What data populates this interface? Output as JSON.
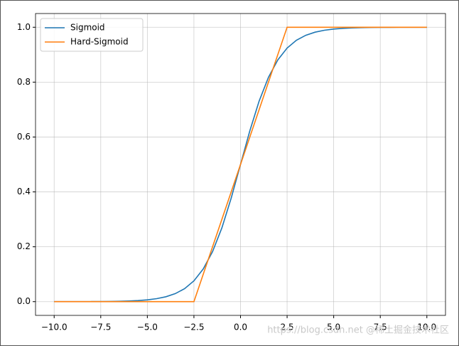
{
  "chart_data": {
    "type": "line",
    "series": [
      {
        "name": "Sigmoid",
        "color": "#1f77b4",
        "x": [
          -10,
          -9.5,
          -9,
          -8.5,
          -8,
          -7.5,
          -7,
          -6.5,
          -6,
          -5.5,
          -5,
          -4.5,
          -4,
          -3.5,
          -3,
          -2.5,
          -2,
          -1.5,
          -1,
          -0.5,
          0,
          0.5,
          1,
          1.5,
          2,
          2.5,
          3,
          3.5,
          4,
          4.5,
          5,
          5.5,
          6,
          6.5,
          7,
          7.5,
          8,
          8.5,
          9,
          9.5,
          10
        ],
        "values": [
          0.0,
          0.0001,
          0.0001,
          0.0002,
          0.0003,
          0.0006,
          0.0009,
          0.0015,
          0.0025,
          0.0041,
          0.0067,
          0.011,
          0.018,
          0.0293,
          0.0474,
          0.0759,
          0.1192,
          0.1824,
          0.2689,
          0.3775,
          0.5,
          0.6225,
          0.7311,
          0.8176,
          0.8808,
          0.9241,
          0.9526,
          0.9707,
          0.982,
          0.989,
          0.9933,
          0.9959,
          0.9975,
          0.9985,
          0.9991,
          0.9994,
          0.9997,
          0.9998,
          0.9999,
          0.9999,
          1.0
        ]
      },
      {
        "name": "Hard-Sigmoid",
        "color": "#ff7f0e",
        "x": [
          -10,
          -2.5,
          2.5,
          10
        ],
        "values": [
          0,
          0,
          1,
          1
        ]
      }
    ],
    "xlim": [
      -11,
      11
    ],
    "xticks": [
      {
        "value": -10,
        "label": "−10.0"
      },
      {
        "value": -7.5,
        "label": "−7.5"
      },
      {
        "value": -5,
        "label": "−5.0"
      },
      {
        "value": -2.5,
        "label": "−2.5"
      },
      {
        "value": 0,
        "label": "0.0"
      },
      {
        "value": 2.5,
        "label": "2.5"
      },
      {
        "value": 5,
        "label": "5.0"
      },
      {
        "value": 7.5,
        "label": "7.5"
      },
      {
        "value": 10,
        "label": "10.0"
      }
    ],
    "ylim": [
      -0.05,
      1.05
    ],
    "yticks": [
      {
        "value": 0,
        "label": "0.0"
      },
      0.2,
      0.4,
      0.6,
      0.8,
      {
        "value": 1,
        "label": "1.0"
      }
    ],
    "grid": true,
    "legend": "upper-left",
    "watermark": "https://blog.csdn.net @稀土掘金技术社区"
  }
}
